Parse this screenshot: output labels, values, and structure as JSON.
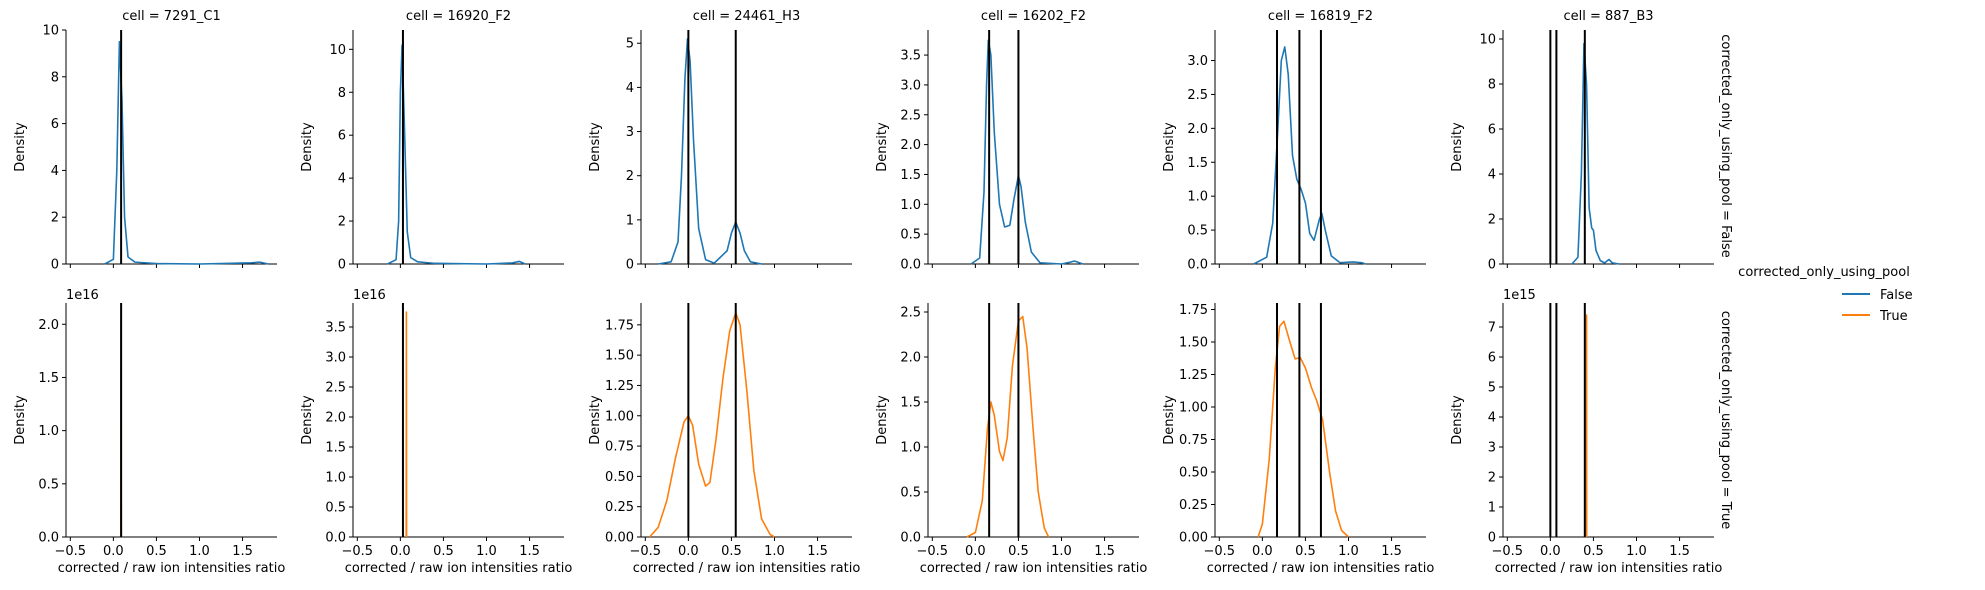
{
  "figure": {
    "legend_title": "corrected_only_using_pool",
    "legend_items": [
      {
        "label": "False",
        "color": "#1f77b4"
      },
      {
        "label": "True",
        "color": "#ff7f0e"
      }
    ],
    "legend_placement": "right-center",
    "row_labels": [
      "corrected_only_using_pool = False",
      "corrected_only_using_pool = True"
    ],
    "xlabel": "corrected / raw ion intensities ratio",
    "ylabel": "Density"
  },
  "chart_data": {
    "type": "line",
    "grid": false,
    "xlim": [
      -0.55,
      1.9
    ],
    "x_ticks": [
      -0.5,
      0.0,
      0.5,
      1.0,
      1.5
    ],
    "x_tick_labels": [
      "−0.5",
      "0.0",
      "0.5",
      "1.0",
      "1.5"
    ],
    "columns": [
      {
        "title": "cell = 7291_C1",
        "vlines": [
          0.09
        ]
      },
      {
        "title": "cell = 16920_F2",
        "vlines": [
          0.03
        ]
      },
      {
        "title": "cell = 24461_H3",
        "vlines": [
          0.0,
          0.55
        ]
      },
      {
        "title": "cell = 16202_F2",
        "vlines": [
          0.16,
          0.5
        ]
      },
      {
        "title": "cell = 16819_F2",
        "vlines": [
          0.17,
          0.43,
          0.68
        ]
      },
      {
        "title": "cell = 887_B3",
        "vlines": [
          0.0,
          0.07,
          0.4
        ]
      }
    ],
    "panels": [
      {
        "row": 0,
        "col": 0,
        "series": "False",
        "color": "#1f77b4",
        "ylim": [
          0,
          10
        ],
        "y_ticks": [
          0,
          2,
          4,
          6,
          8,
          10
        ],
        "y_tick_labels": [
          "0",
          "2",
          "4",
          "6",
          "8",
          "10"
        ],
        "offset_text": "",
        "points": [
          [
            -0.1,
            0
          ],
          [
            0.0,
            0.2
          ],
          [
            0.04,
            4
          ],
          [
            0.07,
            9.5
          ],
          [
            0.1,
            7
          ],
          [
            0.13,
            2
          ],
          [
            0.17,
            0.3
          ],
          [
            0.25,
            0.08
          ],
          [
            0.5,
            0.02
          ],
          [
            1.0,
            0
          ],
          [
            1.6,
            0.05
          ],
          [
            1.7,
            0.08
          ],
          [
            1.8,
            0
          ]
        ]
      },
      {
        "row": 0,
        "col": 1,
        "series": "False",
        "color": "#1f77b4",
        "ylim": [
          0,
          10.9
        ],
        "y_ticks": [
          0,
          2,
          4,
          6,
          8,
          10
        ],
        "y_tick_labels": [
          "0",
          "2",
          "4",
          "6",
          "8",
          "10"
        ],
        "offset_text": "",
        "points": [
          [
            -0.15,
            0
          ],
          [
            -0.05,
            0.2
          ],
          [
            -0.02,
            2
          ],
          [
            0.0,
            8
          ],
          [
            0.02,
            10.2
          ],
          [
            0.05,
            6
          ],
          [
            0.08,
            1.5
          ],
          [
            0.12,
            0.3
          ],
          [
            0.2,
            0.1
          ],
          [
            0.4,
            0.03
          ],
          [
            1.0,
            0
          ],
          [
            1.3,
            0.05
          ],
          [
            1.38,
            0.12
          ],
          [
            1.45,
            0
          ]
        ]
      },
      {
        "row": 0,
        "col": 2,
        "series": "False",
        "color": "#1f77b4",
        "ylim": [
          0,
          5.3
        ],
        "y_ticks": [
          0,
          1,
          2,
          3,
          4,
          5
        ],
        "y_tick_labels": [
          "0",
          "1",
          "2",
          "3",
          "4",
          "5"
        ],
        "offset_text": "",
        "points": [
          [
            -0.35,
            0
          ],
          [
            -0.2,
            0.05
          ],
          [
            -0.12,
            0.5
          ],
          [
            -0.08,
            2
          ],
          [
            -0.04,
            4.2
          ],
          [
            -0.01,
            5.1
          ],
          [
            0.02,
            4.6
          ],
          [
            0.06,
            2.8
          ],
          [
            0.12,
            0.8
          ],
          [
            0.2,
            0.1
          ],
          [
            0.3,
            0.02
          ],
          [
            0.45,
            0.3
          ],
          [
            0.5,
            0.7
          ],
          [
            0.55,
            0.95
          ],
          [
            0.6,
            0.7
          ],
          [
            0.65,
            0.3
          ],
          [
            0.72,
            0.05
          ],
          [
            0.85,
            0
          ]
        ]
      },
      {
        "row": 0,
        "col": 3,
        "series": "False",
        "color": "#1f77b4",
        "ylim": [
          0,
          3.92
        ],
        "y_ticks": [
          0,
          0.5,
          1,
          1.5,
          2,
          2.5,
          3,
          3.5
        ],
        "y_tick_labels": [
          "0.0",
          "0.5",
          "1.0",
          "1.5",
          "2.0",
          "2.5",
          "3.0",
          "3.5"
        ],
        "offset_text": "",
        "points": [
          [
            -0.05,
            0
          ],
          [
            0.05,
            0.1
          ],
          [
            0.1,
            1.2
          ],
          [
            0.13,
            3.0
          ],
          [
            0.15,
            3.75
          ],
          [
            0.18,
            3.5
          ],
          [
            0.22,
            2.2
          ],
          [
            0.28,
            1.0
          ],
          [
            0.34,
            0.62
          ],
          [
            0.4,
            0.65
          ],
          [
            0.45,
            1.1
          ],
          [
            0.5,
            1.48
          ],
          [
            0.53,
            1.3
          ],
          [
            0.58,
            0.7
          ],
          [
            0.65,
            0.2
          ],
          [
            0.75,
            0.02
          ],
          [
            1.0,
            0
          ],
          [
            1.1,
            0.03
          ],
          [
            1.15,
            0.05
          ],
          [
            1.25,
            0
          ]
        ]
      },
      {
        "row": 0,
        "col": 4,
        "series": "False",
        "color": "#1f77b4",
        "ylim": [
          0,
          3.45
        ],
        "y_ticks": [
          0,
          0.5,
          1,
          1.5,
          2,
          2.5,
          3
        ],
        "y_tick_labels": [
          "0.0",
          "0.5",
          "1.0",
          "1.5",
          "2.0",
          "2.5",
          "3.0"
        ],
        "offset_text": "",
        "points": [
          [
            -0.1,
            0
          ],
          [
            0.05,
            0.1
          ],
          [
            0.12,
            0.6
          ],
          [
            0.18,
            2.0
          ],
          [
            0.22,
            3.0
          ],
          [
            0.26,
            3.2
          ],
          [
            0.3,
            2.8
          ],
          [
            0.35,
            1.6
          ],
          [
            0.4,
            1.25
          ],
          [
            0.45,
            1.1
          ],
          [
            0.5,
            0.9
          ],
          [
            0.55,
            0.45
          ],
          [
            0.6,
            0.35
          ],
          [
            0.66,
            0.65
          ],
          [
            0.69,
            0.75
          ],
          [
            0.73,
            0.5
          ],
          [
            0.8,
            0.12
          ],
          [
            0.9,
            0.02
          ],
          [
            1.05,
            0.03
          ],
          [
            1.15,
            0.02
          ],
          [
            1.2,
            0
          ]
        ]
      },
      {
        "row": 0,
        "col": 5,
        "series": "False",
        "color": "#1f77b4",
        "ylim": [
          0,
          10.4
        ],
        "y_ticks": [
          0,
          2,
          4,
          6,
          8,
          10
        ],
        "y_tick_labels": [
          "0",
          "2",
          "4",
          "6",
          "8",
          "10"
        ],
        "offset_text": "",
        "points": [
          [
            0.25,
            0
          ],
          [
            0.32,
            0.3
          ],
          [
            0.36,
            4
          ],
          [
            0.39,
            9.8
          ],
          [
            0.42,
            8
          ],
          [
            0.45,
            2.5
          ],
          [
            0.48,
            1.6
          ],
          [
            0.5,
            1.5
          ],
          [
            0.53,
            0.6
          ],
          [
            0.58,
            0.15
          ],
          [
            0.63,
            0.05
          ],
          [
            0.68,
            0.2
          ],
          [
            0.72,
            0.05
          ],
          [
            0.8,
            0
          ]
        ]
      },
      {
        "row": 1,
        "col": 0,
        "series": "True",
        "color": "#ff7f0e",
        "ylim": [
          0,
          2.2
        ],
        "y_ticks": [
          0,
          0.5,
          1,
          1.5,
          2
        ],
        "y_tick_labels": [
          "0.0",
          "0.5",
          "1.0",
          "1.5",
          "2.0"
        ],
        "offset_text": "1e16",
        "points": [
          [
            0.088,
            0
          ],
          [
            0.09,
            2.05
          ],
          [
            0.092,
            0
          ]
        ]
      },
      {
        "row": 1,
        "col": 1,
        "series": "True",
        "color": "#ff7f0e",
        "ylim": [
          0,
          3.9
        ],
        "y_ticks": [
          0,
          0.5,
          1,
          1.5,
          2,
          2.5,
          3,
          3.5
        ],
        "y_tick_labels": [
          "0.0",
          "0.5",
          "1.0",
          "1.5",
          "2.0",
          "2.5",
          "3.0",
          "3.5"
        ],
        "offset_text": "1e16",
        "points": [
          [
            0.068,
            0
          ],
          [
            0.07,
            3.75
          ],
          [
            0.072,
            0
          ]
        ]
      },
      {
        "row": 1,
        "col": 2,
        "series": "True",
        "color": "#ff7f0e",
        "ylim": [
          0,
          1.93
        ],
        "y_ticks": [
          0,
          0.25,
          0.5,
          0.75,
          1,
          1.25,
          1.5,
          1.75
        ],
        "y_tick_labels": [
          "0.00",
          "0.25",
          "0.50",
          "0.75",
          "1.00",
          "1.25",
          "1.50",
          "1.75"
        ],
        "offset_text": "",
        "points": [
          [
            -0.45,
            0
          ],
          [
            -0.35,
            0.08
          ],
          [
            -0.25,
            0.3
          ],
          [
            -0.15,
            0.65
          ],
          [
            -0.05,
            0.95
          ],
          [
            0.0,
            1.0
          ],
          [
            0.05,
            0.92
          ],
          [
            0.12,
            0.6
          ],
          [
            0.2,
            0.42
          ],
          [
            0.25,
            0.45
          ],
          [
            0.32,
            0.8
          ],
          [
            0.4,
            1.3
          ],
          [
            0.48,
            1.7
          ],
          [
            0.55,
            1.85
          ],
          [
            0.6,
            1.75
          ],
          [
            0.68,
            1.2
          ],
          [
            0.76,
            0.55
          ],
          [
            0.85,
            0.15
          ],
          [
            0.95,
            0.02
          ],
          [
            1.0,
            0
          ]
        ]
      },
      {
        "row": 1,
        "col": 3,
        "series": "True",
        "color": "#ff7f0e",
        "ylim": [
          0,
          2.6
        ],
        "y_ticks": [
          0,
          0.5,
          1,
          1.5,
          2,
          2.5
        ],
        "y_tick_labels": [
          "0.0",
          "0.5",
          "1.0",
          "1.5",
          "2.0",
          "2.5"
        ],
        "offset_text": "",
        "points": [
          [
            -0.1,
            0
          ],
          [
            0.0,
            0.05
          ],
          [
            0.08,
            0.4
          ],
          [
            0.14,
            1.2
          ],
          [
            0.18,
            1.5
          ],
          [
            0.22,
            1.35
          ],
          [
            0.28,
            0.95
          ],
          [
            0.32,
            0.85
          ],
          [
            0.37,
            1.1
          ],
          [
            0.43,
            1.9
          ],
          [
            0.5,
            2.4
          ],
          [
            0.55,
            2.45
          ],
          [
            0.6,
            2.1
          ],
          [
            0.67,
            1.2
          ],
          [
            0.73,
            0.5
          ],
          [
            0.8,
            0.1
          ],
          [
            0.85,
            0
          ]
        ]
      },
      {
        "row": 1,
        "col": 4,
        "series": "True",
        "color": "#ff7f0e",
        "ylim": [
          0,
          1.8
        ],
        "y_ticks": [
          0,
          0.25,
          0.5,
          0.75,
          1,
          1.25,
          1.5,
          1.75
        ],
        "y_tick_labels": [
          "0.00",
          "0.25",
          "0.50",
          "0.75",
          "1.00",
          "1.25",
          "1.50",
          "1.75"
        ],
        "offset_text": "",
        "points": [
          [
            -0.05,
            0
          ],
          [
            0.0,
            0.1
          ],
          [
            0.08,
            0.6
          ],
          [
            0.15,
            1.3
          ],
          [
            0.2,
            1.62
          ],
          [
            0.25,
            1.66
          ],
          [
            0.32,
            1.5
          ],
          [
            0.38,
            1.37
          ],
          [
            0.44,
            1.38
          ],
          [
            0.5,
            1.3
          ],
          [
            0.57,
            1.15
          ],
          [
            0.63,
            1.05
          ],
          [
            0.7,
            0.9
          ],
          [
            0.78,
            0.5
          ],
          [
            0.85,
            0.2
          ],
          [
            0.92,
            0.05
          ],
          [
            1.0,
            0
          ]
        ]
      },
      {
        "row": 1,
        "col": 5,
        "series": "True",
        "color": "#ff7f0e",
        "ylim": [
          0,
          7.8
        ],
        "y_ticks": [
          0,
          1,
          2,
          3,
          4,
          5,
          6,
          7
        ],
        "y_tick_labels": [
          "0",
          "1",
          "2",
          "3",
          "4",
          "5",
          "6",
          "7"
        ],
        "offset_text": "1e15",
        "points": [
          [
            0.418,
            0
          ],
          [
            0.42,
            7.4
          ],
          [
            0.422,
            0
          ]
        ]
      }
    ]
  }
}
